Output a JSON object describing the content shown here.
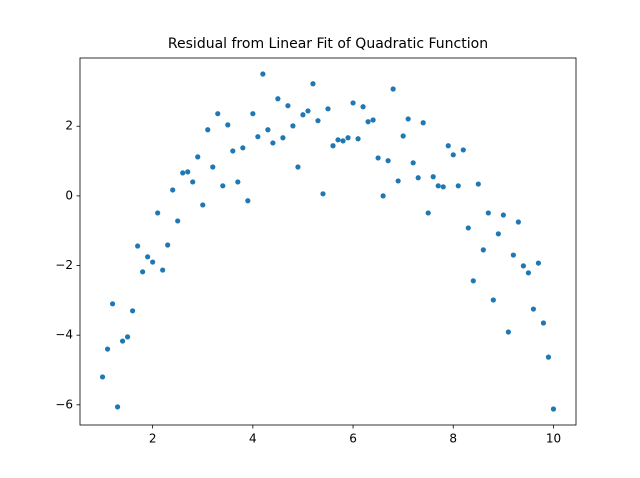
{
  "chart_data": {
    "type": "scatter",
    "title": "Residual from Linear Fit of Quadratic Function",
    "x": [
      1.0,
      1.1,
      1.2,
      1.3,
      1.4,
      1.5,
      1.6,
      1.7,
      1.8,
      1.9,
      2.0,
      2.1,
      2.2,
      2.3,
      2.4,
      2.5,
      2.6,
      2.7,
      2.8,
      2.9,
      3.0,
      3.1,
      3.2,
      3.3,
      3.4,
      3.5,
      3.6,
      3.7,
      3.8,
      3.9,
      4.0,
      4.1,
      4.2,
      4.3,
      4.4,
      4.5,
      4.6,
      4.7,
      4.8,
      4.9,
      5.0,
      5.1,
      5.2,
      5.3,
      5.4,
      5.5,
      5.6,
      5.7,
      5.8,
      5.9,
      6.0,
      6.1,
      6.2,
      6.3,
      6.4,
      6.5,
      6.6,
      6.7,
      6.8,
      6.9,
      7.0,
      7.1,
      7.2,
      7.3,
      7.4,
      7.5,
      7.6,
      7.7,
      7.8,
      7.9,
      8.0,
      8.1,
      8.2,
      8.3,
      8.4,
      8.5,
      8.6,
      8.7,
      8.8,
      8.9,
      9.0,
      9.1,
      9.2,
      9.3,
      9.4,
      9.5,
      9.6,
      9.7,
      9.8,
      9.9,
      10.0
    ],
    "values": [
      -5.2,
      -4.4,
      -3.1,
      -6.06,
      -4.17,
      -4.05,
      -3.3,
      -1.44,
      -2.18,
      -1.75,
      -1.9,
      -0.49,
      -2.13,
      -1.41,
      0.17,
      -0.72,
      0.66,
      0.69,
      0.4,
      1.12,
      -0.26,
      1.9,
      0.83,
      2.36,
      0.29,
      2.04,
      1.29,
      0.4,
      1.38,
      -0.14,
      2.36,
      1.7,
      3.5,
      1.9,
      1.52,
      2.79,
      1.67,
      2.59,
      2.01,
      0.83,
      2.33,
      2.44,
      3.22,
      2.16,
      0.06,
      2.5,
      1.44,
      1.61,
      1.58,
      1.67,
      2.67,
      1.64,
      2.56,
      2.13,
      2.18,
      1.09,
      0.0,
      1.01,
      3.07,
      0.43,
      1.72,
      2.21,
      0.95,
      0.52,
      2.1,
      -0.49,
      0.55,
      0.29,
      0.26,
      1.44,
      1.18,
      0.29,
      1.32,
      -0.92,
      -2.44,
      0.34,
      -1.55,
      -0.49,
      -2.99,
      -1.09,
      -0.55,
      -3.91,
      -1.7,
      -0.75,
      -2.01,
      -2.21,
      -3.25,
      -1.93,
      -3.65,
      -4.63,
      -6.12
    ],
    "color": "#1f77b4",
    "xlim": [
      0.55,
      10.45
    ],
    "xticks": [
      2,
      4,
      6,
      8,
      10
    ],
    "ylim": [
      -6.58,
      3.96
    ],
    "yticks": [
      {
        "value": -6,
        "label": "−6"
      },
      {
        "value": -4,
        "label": "−4"
      },
      {
        "value": -2,
        "label": "−2"
      },
      0,
      2
    ]
  }
}
